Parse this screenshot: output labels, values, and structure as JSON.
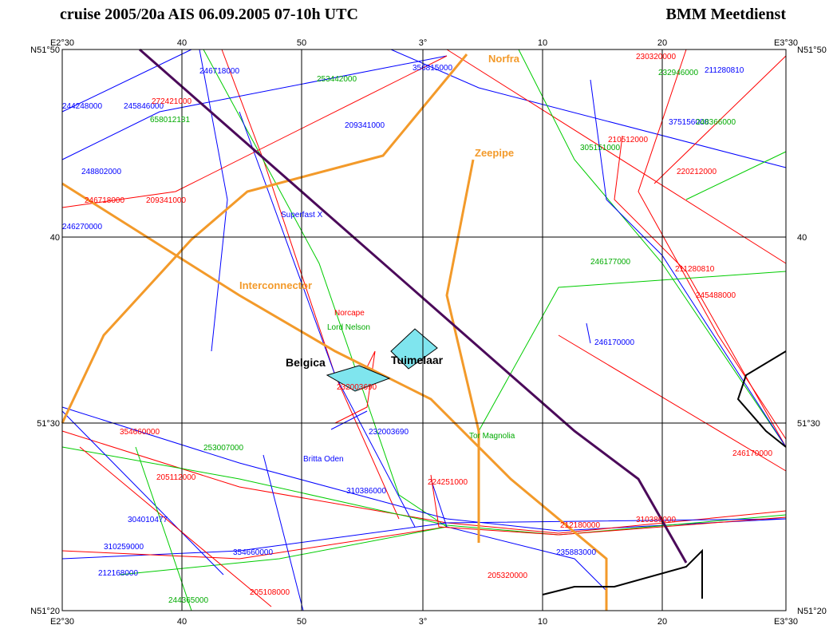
{
  "header": {
    "title": "cruise 2005/20a  AIS 06.09.2005 07-10h UTC",
    "source": "BMM Meetdienst"
  },
  "axes": {
    "top": [
      "E2°30",
      "40",
      "50",
      "3°",
      "10",
      "20",
      "E3°30"
    ],
    "bottom": [
      "E2°30",
      "40",
      "50",
      "3°",
      "10",
      "20",
      "E3°30"
    ],
    "left": [
      "N51°50",
      "40",
      "51°30",
      "N51°20"
    ],
    "right": [
      "N51°50",
      "40",
      "51°30",
      "N51°20"
    ]
  },
  "pipelines": [
    "Norfra",
    "Zeepipe",
    "Interconnector"
  ],
  "sites": [
    "Belgica",
    "Tuimelaar"
  ],
  "vessels": [
    "246718000",
    "356815000",
    "244248000",
    "245846000",
    "209341000",
    "248802000",
    "Superfast X",
    "246270000",
    "246170000",
    "232003690",
    "Britta Oden",
    "304010477",
    "310259000",
    "211280810",
    "375156000",
    "212168000",
    "354660000",
    "310386000",
    "235883000",
    "230320000",
    "209341000",
    "246718000",
    "210512000",
    "220212000",
    "354660000",
    "205112000",
    "224251000",
    "232003690",
    "Norcape",
    "246170000",
    "212180000",
    "310386000",
    "205108000",
    "205320000",
    "245488000",
    "272421000",
    "253442000",
    "232946000",
    "248366000",
    "305151000",
    "Lord Nelson",
    "253007000",
    "Tor Magnolia",
    "244365000",
    "246177000",
    "658012131",
    "211280810"
  ]
}
